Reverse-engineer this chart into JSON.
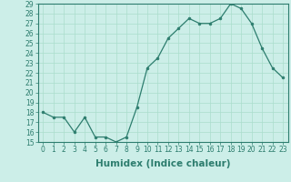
{
  "xlabel": "Humidex (Indice chaleur)",
  "x": [
    0,
    1,
    2,
    3,
    4,
    5,
    6,
    7,
    8,
    9,
    10,
    11,
    12,
    13,
    14,
    15,
    16,
    17,
    18,
    19,
    20,
    21,
    22,
    23
  ],
  "y": [
    18.0,
    17.5,
    17.5,
    16.0,
    17.5,
    15.5,
    15.5,
    15.0,
    15.5,
    18.5,
    22.5,
    23.5,
    25.5,
    26.5,
    27.5,
    27.0,
    27.0,
    27.5,
    29.0,
    28.5,
    27.0,
    24.5,
    22.5,
    21.5
  ],
  "line_color": "#2d7d6e",
  "marker": "o",
  "marker_size": 2.0,
  "background_color": "#cceee8",
  "grid_color": "#aaddcc",
  "ylim": [
    15,
    29
  ],
  "xlim": [
    -0.5,
    23.5
  ],
  "yticks": [
    15,
    16,
    17,
    18,
    19,
    20,
    21,
    22,
    23,
    24,
    25,
    26,
    27,
    28,
    29
  ],
  "xticks": [
    0,
    1,
    2,
    3,
    4,
    5,
    6,
    7,
    8,
    9,
    10,
    11,
    12,
    13,
    14,
    15,
    16,
    17,
    18,
    19,
    20,
    21,
    22,
    23
  ],
  "tick_fontsize": 5.5,
  "xlabel_fontsize": 7.5,
  "linewidth": 0.9
}
